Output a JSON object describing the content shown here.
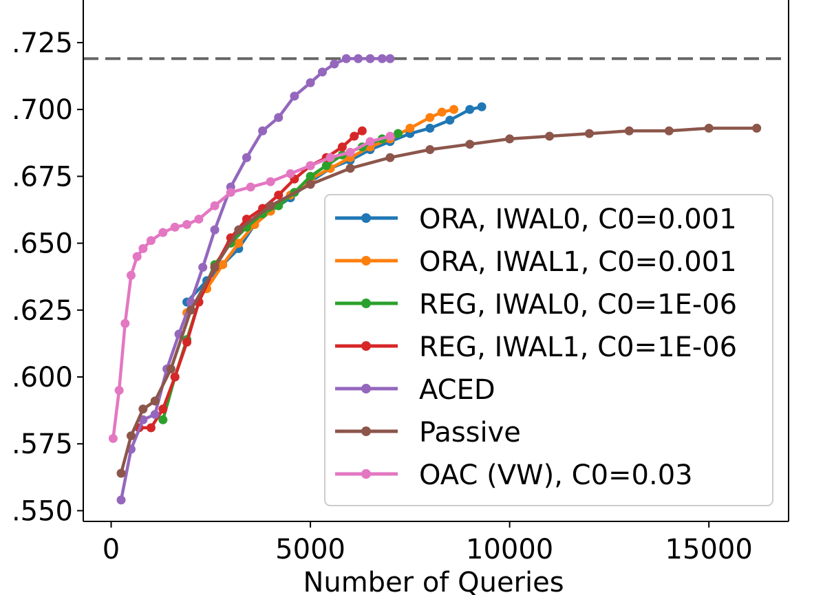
{
  "chart_data": {
    "type": "line",
    "title": "",
    "xlabel": "Number of Queries",
    "ylabel": "",
    "xlim": [
      -700,
      17000
    ],
    "ylim": [
      0.546,
      0.7435
    ],
    "x_ticks": [
      0,
      5000,
      10000,
      15000
    ],
    "x_tick_labels": [
      "0",
      "5000",
      "10000",
      "15000"
    ],
    "y_ticks": [
      0.55,
      0.575,
      0.6,
      0.625,
      0.65,
      0.675,
      0.7,
      0.725
    ],
    "y_tick_labels": [
      ".550",
      ".575",
      ".600",
      ".625",
      ".650",
      ".675",
      ".700",
      ".725"
    ],
    "reference_line": {
      "y": 0.719,
      "style": "dashed",
      "color": "#666666"
    },
    "legend_position": "lower-right",
    "series": [
      {
        "name": "ORA, IWAL0, C0=0.001",
        "color": "#1f77b4",
        "x": [
          1900,
          2400,
          2800,
          3200,
          3600,
          4000,
          4500,
          5000,
          5500,
          6000,
          6500,
          7000,
          7500,
          8000,
          8500,
          9000,
          9300
        ],
        "y": [
          0.628,
          0.636,
          0.642,
          0.648,
          0.657,
          0.662,
          0.667,
          0.673,
          0.678,
          0.681,
          0.685,
          0.688,
          0.691,
          0.693,
          0.696,
          0.7,
          0.701
        ]
      },
      {
        "name": "ORA, IWAL1, C0=0.001",
        "color": "#ff7f0e",
        "x": [
          1900,
          2400,
          2800,
          3200,
          3600,
          4000,
          4500,
          5000,
          5500,
          6000,
          6500,
          7000,
          7500,
          8000,
          8300,
          8600
        ],
        "y": [
          0.624,
          0.633,
          0.642,
          0.65,
          0.657,
          0.662,
          0.668,
          0.674,
          0.678,
          0.682,
          0.686,
          0.689,
          0.693,
          0.697,
          0.699,
          0.7
        ]
      },
      {
        "name": "REG, IWAL0, C0=1E-06",
        "color": "#2ca02c",
        "x": [
          1300,
          1600,
          1900,
          2200,
          2600,
          3000,
          3400,
          3800,
          4200,
          4600,
          5000,
          5400,
          5800,
          6300,
          6800,
          7200
        ],
        "y": [
          0.584,
          0.6,
          0.614,
          0.628,
          0.642,
          0.65,
          0.656,
          0.661,
          0.664,
          0.669,
          0.675,
          0.679,
          0.683,
          0.686,
          0.689,
          0.691
        ]
      },
      {
        "name": "REG, IWAL1, C0=1E-06",
        "color": "#d62728",
        "x": [
          700,
          1000,
          1300,
          1600,
          1900,
          2200,
          2600,
          3000,
          3400,
          3800,
          4200,
          4600,
          5000,
          5400,
          5800,
          6100,
          6300
        ],
        "y": [
          0.581,
          0.581,
          0.588,
          0.6,
          0.613,
          0.628,
          0.641,
          0.652,
          0.659,
          0.663,
          0.668,
          0.674,
          0.679,
          0.682,
          0.686,
          0.69,
          0.692
        ]
      },
      {
        "name": "ACED",
        "color": "#9467bd",
        "x": [
          250,
          500,
          800,
          1100,
          1400,
          1700,
          2000,
          2300,
          2600,
          3000,
          3400,
          3800,
          4200,
          4600,
          5000,
          5300,
          5600,
          5900,
          6200,
          6500,
          6800,
          7000
        ],
        "y": [
          0.554,
          0.573,
          0.584,
          0.586,
          0.603,
          0.616,
          0.628,
          0.641,
          0.655,
          0.671,
          0.682,
          0.692,
          0.697,
          0.705,
          0.71,
          0.714,
          0.717,
          0.719,
          0.719,
          0.719,
          0.719,
          0.719
        ]
      },
      {
        "name": "Passive",
        "color": "#8c564b",
        "x": [
          250,
          500,
          800,
          1100,
          1500,
          2000,
          2600,
          3200,
          4000,
          5000,
          6000,
          7000,
          8000,
          9000,
          10000,
          11000,
          12000,
          13000,
          14000,
          15000,
          16200
        ],
        "y": [
          0.564,
          0.578,
          0.588,
          0.591,
          0.603,
          0.625,
          0.641,
          0.655,
          0.664,
          0.672,
          0.678,
          0.682,
          0.685,
          0.687,
          0.689,
          0.69,
          0.691,
          0.692,
          0.692,
          0.693,
          0.693
        ]
      },
      {
        "name": "OAC (VW), C0=0.03",
        "color": "#e377c2",
        "x": [
          50,
          200,
          350,
          500,
          650,
          800,
          1000,
          1300,
          1600,
          1900,
          2200,
          2600,
          3000,
          3500,
          4000,
          4500,
          5000,
          5500,
          6000,
          6500,
          7000
        ],
        "y": [
          0.577,
          0.595,
          0.62,
          0.638,
          0.645,
          0.648,
          0.651,
          0.654,
          0.656,
          0.657,
          0.659,
          0.664,
          0.669,
          0.671,
          0.673,
          0.676,
          0.679,
          0.682,
          0.684,
          0.688,
          0.69
        ]
      }
    ]
  }
}
